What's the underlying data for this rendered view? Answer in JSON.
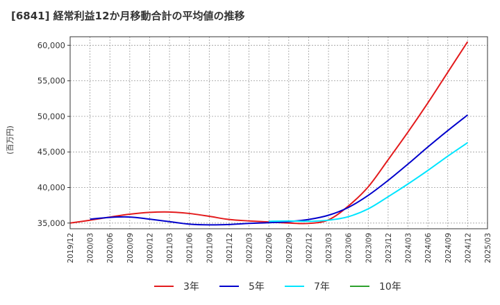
{
  "chart_data": {
    "type": "line",
    "title": "[6841]  経常利益12か月移動合計の平均値の推移",
    "ylabel": "(百万円)",
    "xlabel": "",
    "ylim": [
      34200,
      61200
    ],
    "yticks": [
      35000,
      40000,
      45000,
      50000,
      55000,
      60000
    ],
    "ytick_labels": [
      "35,000",
      "40,000",
      "45,000",
      "50,000",
      "55,000",
      "60,000"
    ],
    "xticks": [
      "2019/12",
      "2020/03",
      "2020/06",
      "2020/09",
      "2020/12",
      "2021/03",
      "2021/06",
      "2021/09",
      "2021/12",
      "2022/03",
      "2022/06",
      "2022/09",
      "2022/12",
      "2023/03",
      "2023/06",
      "2023/09",
      "2023/12",
      "2024/03",
      "2024/06",
      "2024/09",
      "2024/12",
      "2025/03"
    ],
    "grid": true,
    "legend_position": "bottom",
    "series": [
      {
        "name": "3年",
        "color": "#e31a1c",
        "x": [
          "2019/12",
          "2020/03",
          "2020/06",
          "2020/09",
          "2020/12",
          "2021/03",
          "2021/06",
          "2021/09",
          "2021/12",
          "2022/03",
          "2022/06",
          "2022/09",
          "2022/12",
          "2023/03",
          "2023/06",
          "2023/09",
          "2023/12",
          "2024/03",
          "2024/06",
          "2024/09",
          "2024/12"
        ],
        "values": [
          35000,
          35400,
          35850,
          36250,
          36500,
          36550,
          36350,
          35950,
          35500,
          35300,
          35150,
          35000,
          34950,
          35450,
          37400,
          40100,
          43900,
          47800,
          51900,
          56200,
          60500
        ]
      },
      {
        "name": "5年",
        "color": "#0000cc",
        "x": [
          "2020/03",
          "2020/06",
          "2020/09",
          "2020/12",
          "2021/03",
          "2021/06",
          "2021/09",
          "2021/12",
          "2022/03",
          "2022/06",
          "2022/09",
          "2022/12",
          "2023/03",
          "2023/06",
          "2023/09",
          "2023/12",
          "2024/03",
          "2024/06",
          "2024/09",
          "2024/12"
        ],
        "values": [
          35550,
          35800,
          35850,
          35550,
          35200,
          34850,
          34750,
          34800,
          34950,
          35050,
          35200,
          35500,
          36100,
          37200,
          38900,
          41000,
          43300,
          45700,
          48000,
          50200
        ]
      },
      {
        "name": "7年",
        "color": "#00e5ff",
        "x": [
          "2022/06",
          "2022/09",
          "2022/12",
          "2023/03",
          "2023/06",
          "2023/09",
          "2023/12",
          "2024/03",
          "2024/06",
          "2024/09",
          "2024/12"
        ],
        "values": [
          35250,
          35300,
          35250,
          35400,
          35900,
          37000,
          38700,
          40500,
          42400,
          44400,
          46300
        ]
      },
      {
        "name": "10年",
        "color": "#2ca02c",
        "x": [],
        "values": []
      }
    ]
  }
}
